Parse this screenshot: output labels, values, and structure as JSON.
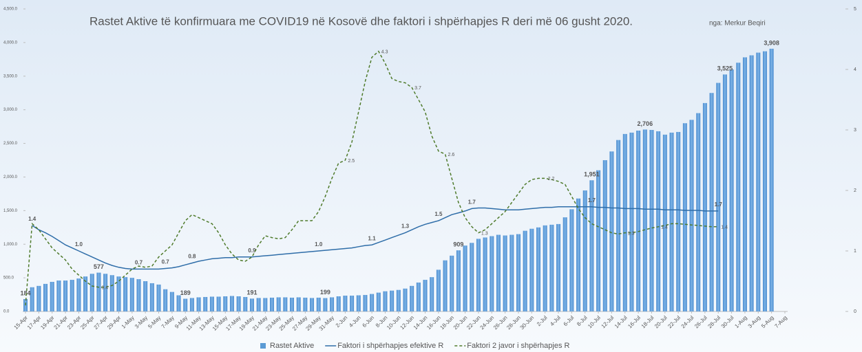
{
  "chart_data": {
    "type": "combo",
    "title": "Rastet Aktive të konfirmuara me COVID19 në Kosovë dhe faktori i shpërhapjes R deri më 06 gusht 2020.",
    "subtitle": "nga: Merkur Beqiri",
    "categories": [
      "15-Apr",
      null,
      "17-Apr",
      null,
      "19-Apr",
      null,
      "21-Apr",
      null,
      "23-Apr",
      null,
      "25-Apr",
      null,
      "27-Apr",
      null,
      "29-Apr",
      null,
      "1-May",
      null,
      "3-May",
      null,
      "5-May",
      null,
      "7-May",
      null,
      "9-May",
      null,
      "11-May",
      null,
      "13-May",
      null,
      "15-May",
      null,
      "17-May",
      null,
      "19-May",
      null,
      "21-May",
      null,
      "23-May",
      null,
      "25-May",
      null,
      "27-May",
      null,
      "29-May",
      null,
      "31-May",
      null,
      "2-Jun",
      null,
      "4-Jun",
      null,
      "6-Jun",
      null,
      "8-Jun",
      null,
      "10-Jun",
      null,
      "12-Jun",
      null,
      "14-Jun",
      null,
      "16-Jun",
      null,
      "18-Jun",
      null,
      "20-Jun",
      null,
      "22-Jun",
      null,
      "24-Jun",
      null,
      "26-Jun",
      null,
      "28-Jun",
      null,
      "30-Jun",
      null,
      "2-Jul",
      null,
      "4-Jul",
      null,
      "6-Jul",
      null,
      "8-Jul",
      null,
      "10-Jul",
      null,
      "12-Jul",
      null,
      "14-Jul",
      null,
      "16-Jul",
      null,
      "18-Jul",
      null,
      "20-Jul",
      null,
      "22-Jul",
      null,
      "24-Jul",
      null,
      "26-Jul",
      null,
      "28-Jul",
      null,
      "30-Jul",
      null,
      "1-Aug",
      null,
      "3-Aug",
      null,
      "5-Aug",
      null,
      "7-Aug"
    ],
    "series": [
      {
        "name": "Rastet Aktive",
        "type": "bar",
        "color": "#5b9bd5",
        "values": [
          184,
          360,
          380,
          410,
          440,
          460,
          460,
          470,
          490,
          520,
          560,
          577,
          560,
          540,
          520,
          510,
          500,
          480,
          450,
          420,
          400,
          330,
          290,
          240,
          189,
          200,
          210,
          215,
          220,
          220,
          225,
          230,
          225,
          215,
          191,
          200,
          200,
          205,
          210,
          210,
          205,
          210,
          205,
          200,
          205,
          199,
          210,
          225,
          235,
          235,
          240,
          245,
          260,
          280,
          300,
          310,
          320,
          340,
          380,
          430,
          470,
          510,
          620,
          760,
          830,
          909,
          980,
          1020,
          1080,
          1100,
          1120,
          1140,
          1130,
          1140,
          1150,
          1200,
          1230,
          1250,
          1280,
          1290,
          1300,
          1400,
          1520,
          1680,
          1800,
          1951,
          2100,
          2250,
          2380,
          2550,
          2640,
          2660,
          2690,
          2706,
          2700,
          2680,
          2630,
          2660,
          2670,
          2800,
          2850,
          2950,
          3100,
          3250,
          3400,
          3525,
          3600,
          3700,
          3780,
          3810,
          3850,
          3870,
          3908,
          null,
          null
        ],
        "value_labels": [
          "184",
          null,
          null,
          null,
          null,
          null,
          null,
          null,
          null,
          null,
          null,
          "577",
          null,
          null,
          null,
          null,
          null,
          null,
          null,
          null,
          null,
          null,
          null,
          null,
          "189",
          null,
          null,
          null,
          null,
          null,
          null,
          null,
          null,
          null,
          "191",
          null,
          null,
          null,
          null,
          null,
          null,
          null,
          null,
          null,
          null,
          "199",
          null,
          null,
          null,
          null,
          null,
          null,
          null,
          null,
          null,
          null,
          null,
          null,
          null,
          null,
          null,
          null,
          null,
          null,
          null,
          "909",
          null,
          null,
          null,
          null,
          null,
          null,
          null,
          null,
          null,
          null,
          null,
          null,
          null,
          null,
          null,
          null,
          null,
          null,
          null,
          "1,951",
          null,
          null,
          null,
          null,
          null,
          null,
          null,
          "2,706",
          null,
          null,
          null,
          null,
          null,
          null,
          null,
          null,
          null,
          null,
          null,
          "3,525",
          null,
          null,
          null,
          null,
          null,
          null,
          "3,908",
          null,
          null
        ]
      },
      {
        "name": "Faktori i shpërhapjes efektive R",
        "type": "line",
        "axis": "y2",
        "color": "#2e6da8",
        "dashed": false,
        "values": [
          null,
          1.42,
          1.35,
          1.3,
          1.24,
          1.17,
          1.1,
          1.05,
          1.0,
          0.95,
          0.9,
          0.85,
          0.8,
          0.76,
          0.73,
          0.71,
          0.7,
          0.7,
          0.7,
          0.7,
          0.7,
          0.71,
          0.72,
          0.74,
          0.77,
          0.8,
          0.83,
          0.85,
          0.87,
          0.88,
          0.89,
          0.89,
          0.9,
          0.9,
          0.9,
          0.91,
          0.92,
          0.93,
          0.94,
          0.95,
          0.96,
          0.97,
          0.98,
          0.99,
          1.0,
          1.01,
          1.02,
          1.03,
          1.04,
          1.05,
          1.07,
          1.09,
          1.1,
          1.14,
          1.18,
          1.22,
          1.26,
          1.3,
          1.35,
          1.4,
          1.44,
          1.47,
          1.5,
          1.55,
          1.6,
          1.63,
          1.66,
          1.7,
          1.71,
          1.71,
          1.7,
          1.69,
          1.68,
          1.68,
          1.68,
          1.69,
          1.7,
          1.71,
          1.72,
          1.72,
          1.73,
          1.73,
          1.73,
          1.73,
          1.73,
          1.73,
          1.72,
          1.72,
          1.71,
          1.71,
          1.7,
          1.7,
          1.7,
          1.69,
          1.69,
          1.69,
          1.68,
          1.68,
          1.68,
          1.67,
          1.67,
          1.67,
          1.66,
          1.66,
          1.66,
          null,
          null,
          null,
          null,
          null,
          null,
          null,
          null,
          null,
          null
        ],
        "value_labels": [
          null,
          "1.4",
          null,
          null,
          null,
          null,
          null,
          null,
          "1.0",
          null,
          null,
          null,
          null,
          null,
          null,
          null,
          null,
          "0.7",
          null,
          null,
          null,
          "0.7",
          null,
          null,
          null,
          "0.8",
          null,
          null,
          null,
          null,
          null,
          null,
          null,
          null,
          "0.9",
          null,
          null,
          null,
          null,
          null,
          null,
          null,
          null,
          null,
          "1.0",
          null,
          null,
          null,
          null,
          null,
          null,
          null,
          "1.1",
          null,
          null,
          null,
          null,
          "1.3",
          null,
          null,
          null,
          null,
          "1.5",
          null,
          null,
          null,
          null,
          "1.7",
          null,
          null,
          null,
          null,
          null,
          null,
          null,
          null,
          null,
          null,
          null,
          null,
          null,
          null,
          null,
          null,
          null,
          "1.7",
          null,
          null,
          null,
          null,
          null,
          null,
          null,
          null,
          null,
          null,
          null,
          null,
          null,
          null,
          null,
          null,
          null,
          null,
          "1.7",
          null,
          null,
          null,
          null,
          null,
          null,
          null,
          null,
          null,
          null
        ]
      },
      {
        "name": "Faktori 2 javor i shpërhapjes R",
        "type": "line",
        "axis": "y2",
        "color": "#4e7a2a",
        "dashed": true,
        "values": [
          0.1,
          1.45,
          1.35,
          1.2,
          1.05,
          0.95,
          0.85,
          0.7,
          0.6,
          0.5,
          0.42,
          0.4,
          0.4,
          0.43,
          0.5,
          0.6,
          0.7,
          0.75,
          0.73,
          0.75,
          0.9,
          1.0,
          1.1,
          1.3,
          1.5,
          1.6,
          1.55,
          1.5,
          1.45,
          1.3,
          1.1,
          0.95,
          0.85,
          0.83,
          0.9,
          1.1,
          1.25,
          1.22,
          1.2,
          1.22,
          1.35,
          1.5,
          1.5,
          1.5,
          1.65,
          1.9,
          2.2,
          2.45,
          2.5,
          2.8,
          3.3,
          3.8,
          4.2,
          4.3,
          4.1,
          3.85,
          3.8,
          3.78,
          3.7,
          3.5,
          3.3,
          2.9,
          2.65,
          2.6,
          2.2,
          1.8,
          1.55,
          1.4,
          1.3,
          1.35,
          1.45,
          1.55,
          1.65,
          1.8,
          1.95,
          2.1,
          2.18,
          2.2,
          2.2,
          2.18,
          2.15,
          2.1,
          1.9,
          1.7,
          1.55,
          1.45,
          1.4,
          1.35,
          1.3,
          1.28,
          1.3,
          1.3,
          1.32,
          1.35,
          1.38,
          1.4,
          1.42,
          1.45,
          1.45,
          1.44,
          1.43,
          1.42,
          1.41,
          1.4,
          1.4,
          null,
          null,
          null,
          null,
          null,
          null,
          null,
          null,
          null,
          null
        ],
        "value_labels": [
          null,
          null,
          null,
          null,
          null,
          null,
          null,
          null,
          null,
          null,
          null,
          "0.4",
          null,
          null,
          null,
          null,
          null,
          null,
          null,
          null,
          null,
          null,
          null,
          null,
          null,
          null,
          null,
          null,
          null,
          null,
          null,
          null,
          null,
          null,
          null,
          null,
          null,
          null,
          null,
          null,
          null,
          null,
          null,
          null,
          null,
          null,
          null,
          null,
          "2.5",
          null,
          null,
          null,
          null,
          "4.3",
          null,
          null,
          null,
          null,
          "3.7",
          null,
          null,
          null,
          null,
          "2.6",
          null,
          null,
          null,
          null,
          "1.3",
          null,
          null,
          null,
          null,
          null,
          null,
          null,
          null,
          null,
          "2.2",
          null,
          null,
          null,
          null,
          null,
          null,
          null,
          null,
          null,
          null,
          null,
          "1.3",
          null,
          null,
          null,
          null,
          "1.4",
          null,
          null,
          null,
          null,
          null,
          null,
          null,
          null,
          "1.4",
          null,
          null,
          null,
          null,
          null,
          null,
          null,
          null,
          null,
          null
        ]
      }
    ],
    "ylim": [
      0,
      4500
    ],
    "yticks": [
      {
        "value": 0,
        "label": "0.0"
      },
      {
        "value": 500,
        "label": "500.0"
      },
      {
        "value": 1000,
        "label": "1,000.0"
      },
      {
        "value": 1500,
        "label": "1,500.0"
      },
      {
        "value": 2000,
        "label": "2,000.0"
      },
      {
        "value": 2500,
        "label": "2,500.0"
      },
      {
        "value": 3000,
        "label": "3,000.0"
      },
      {
        "value": 3500,
        "label": "3,500.0"
      },
      {
        "value": 4000,
        "label": "4,000.0"
      },
      {
        "value": 4500,
        "label": "4,500.0"
      }
    ],
    "y2lim": [
      0,
      5
    ],
    "y2ticks": [
      0,
      1,
      2,
      3,
      4,
      5
    ],
    "legend": "bottom"
  }
}
